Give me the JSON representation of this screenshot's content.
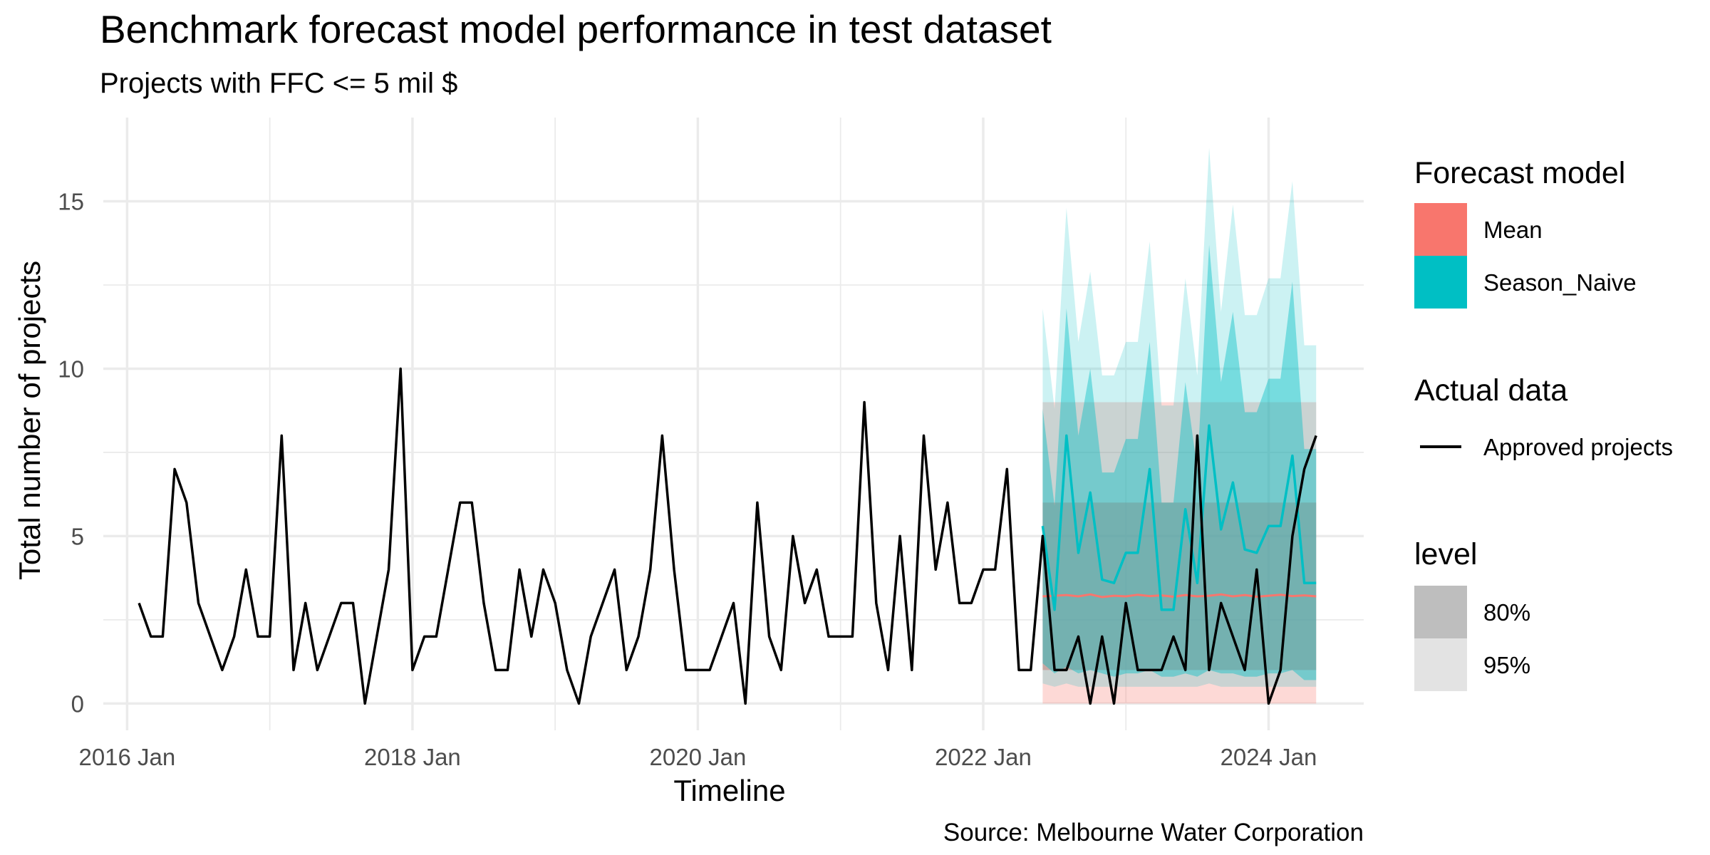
{
  "chart_data": {
    "type": "line",
    "title": "Benchmark forecast model performance in test dataset",
    "subtitle": "Projects with FFC <= 5 mil $",
    "xlabel": "Timeline",
    "ylabel": "Total number of projects",
    "caption": "Source: Melbourne Water Corporation",
    "x_ticks": [
      "2016 Jan",
      "2018 Jan",
      "2020 Jan",
      "2022 Jan",
      "2024 Jan"
    ],
    "y_ticks": [
      "0",
      "5",
      "10",
      "15"
    ],
    "ylim": [
      -0.8,
      17.5
    ],
    "xlim": [
      "2015-11",
      "2024-09"
    ],
    "grid": true,
    "legend_placement": "right",
    "legend": {
      "forecast_title": "Forecast model",
      "forecast_items": [
        {
          "label": "Mean",
          "color": "#F8766D"
        },
        {
          "label": "Season_Naive",
          "color": "#00BFC4"
        }
      ],
      "actual_title": "Actual data",
      "actual_items": [
        {
          "label": "Approved projects",
          "color": "#000000"
        }
      ],
      "level_title": "level",
      "level_items": [
        {
          "label": "80%",
          "color": "#BEBEBE"
        },
        {
          "label": "95%",
          "color": "#E3E3E3"
        }
      ]
    },
    "actual": {
      "name": "Approved projects",
      "start": "2016-02",
      "values": [
        3,
        2,
        2,
        7,
        6,
        3,
        2,
        1,
        2,
        4,
        2,
        2,
        8,
        1,
        3,
        1,
        2,
        3,
        3,
        0,
        2,
        4,
        10,
        1,
        2,
        2,
        4,
        6,
        6,
        3,
        1,
        1,
        4,
        2,
        4,
        3,
        1,
        0,
        2,
        3,
        4,
        1,
        2,
        4,
        8,
        4,
        1,
        1,
        1,
        2,
        3,
        0,
        6,
        2,
        1,
        5,
        3,
        4,
        2,
        2,
        2,
        9,
        3,
        1,
        5,
        1,
        8,
        4,
        6,
        3,
        3,
        4,
        4,
        7,
        1,
        1,
        5,
        1,
        1,
        2,
        0,
        2,
        0,
        3,
        1,
        1,
        1,
        2,
        1,
        8,
        1,
        3,
        2,
        1,
        4,
        0,
        1,
        5,
        7,
        8
      ]
    },
    "forecast": {
      "start": "2022-06",
      "mean": {
        "name": "Mean",
        "values": [
          3.2,
          3.22,
          3.24,
          3.2,
          3.26,
          3.18,
          3.22,
          3.2,
          3.25,
          3.21,
          3.23,
          3.19,
          3.24,
          3.2,
          3.22,
          3.26,
          3.2,
          3.24,
          3.19,
          3.22,
          3.25,
          3.21,
          3.23,
          3.2
        ],
        "lo80": 1,
        "hi80": 6,
        "lo95": 0,
        "hi95": 9
      },
      "snaive": {
        "name": "Season_Naive",
        "values": [
          5.3,
          2.8,
          8.0,
          4.5,
          6.3,
          3.7,
          3.6,
          4.5,
          4.5,
          7.0,
          2.8,
          2.8,
          5.8,
          3.6,
          8.3,
          5.2,
          6.6,
          4.6,
          4.5,
          5.3,
          5.3,
          7.4,
          3.6,
          3.6
        ],
        "lo80": [
          1.2,
          0.9,
          1.1,
          0.9,
          1.0,
          0.9,
          0.8,
          0.9,
          0.9,
          1.0,
          0.8,
          0.8,
          0.9,
          0.8,
          1.0,
          0.9,
          0.9,
          0.8,
          0.8,
          0.9,
          0.9,
          1.0,
          0.7,
          0.7
        ],
        "hi80": [
          8.8,
          5.9,
          11.8,
          8.0,
          10.0,
          6.9,
          6.9,
          7.9,
          7.9,
          10.8,
          6.0,
          6.0,
          9.6,
          7.0,
          13.7,
          9.6,
          11.7,
          8.7,
          8.7,
          9.7,
          9.7,
          12.6,
          7.6,
          7.6
        ],
        "lo95": [
          0.6,
          0.5,
          0.6,
          0.5,
          0.5,
          0.5,
          0.5,
          0.5,
          0.5,
          0.5,
          0.5,
          0.5,
          0.5,
          0.5,
          0.6,
          0.5,
          0.5,
          0.5,
          0.5,
          0.5,
          0.5,
          0.5,
          0.5,
          0.5
        ],
        "hi95": [
          11.8,
          8.8,
          14.8,
          10.8,
          12.9,
          9.8,
          9.8,
          10.8,
          10.8,
          13.8,
          8.9,
          8.9,
          12.7,
          9.8,
          16.6,
          11.7,
          14.9,
          11.6,
          11.6,
          12.7,
          12.7,
          15.6,
          10.7,
          10.7
        ]
      }
    }
  }
}
